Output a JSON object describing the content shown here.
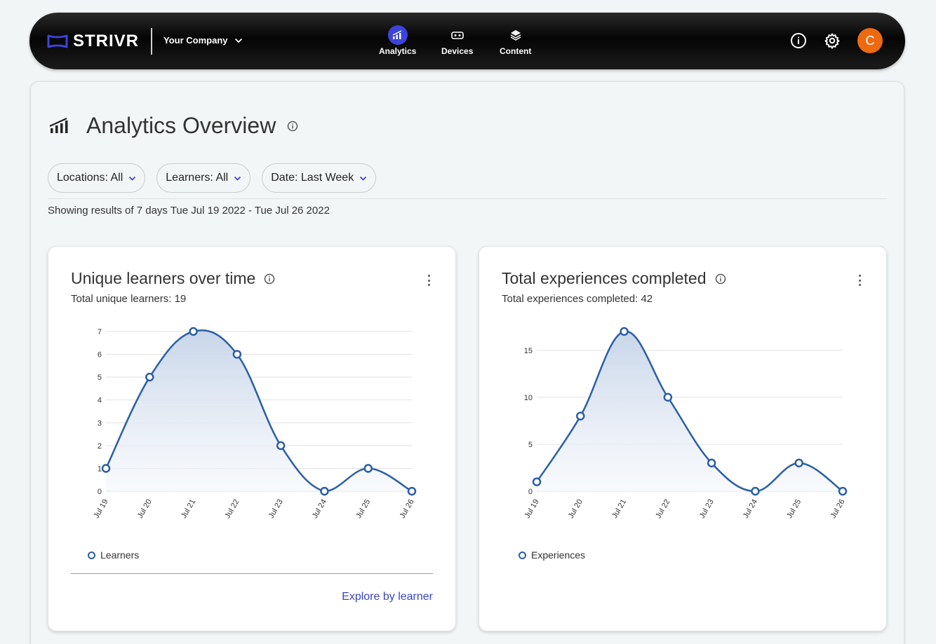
{
  "header": {
    "brand": "STRIVR",
    "company": "Your Company",
    "nav": [
      {
        "label": "Analytics",
        "icon": "analytics-icon",
        "active": true
      },
      {
        "label": "Devices",
        "icon": "vr-headset-icon",
        "active": false
      },
      {
        "label": "Content",
        "icon": "layers-icon",
        "active": false
      }
    ],
    "avatar_initial": "C",
    "colors": {
      "accent": "#3d44d8",
      "avatar": "#ee6a10"
    }
  },
  "page": {
    "title": "Analytics Overview",
    "filters": [
      "Locations: All",
      "Learners: All",
      "Date: Last Week"
    ],
    "results_text": "Showing results of 7 days Tue Jul 19 2022 - Tue Jul 26 2022"
  },
  "cards": [
    {
      "title": "Unique learners over time",
      "subtitle": "Total unique learners: 19",
      "legend": "Learners",
      "link": "Explore by learner"
    },
    {
      "title": "Total experiences completed",
      "subtitle": "Total experiences completed: 42",
      "legend": "Experiences"
    }
  ],
  "chart_data": [
    {
      "type": "area",
      "categories": [
        "Jul 19",
        "Jul 20",
        "Jul 21",
        "Jul 22",
        "Jul 23",
        "Jul 24",
        "Jul 25",
        "Jul 26"
      ],
      "series": [
        {
          "name": "Learners",
          "values": [
            1,
            5,
            7,
            6,
            2,
            0,
            1,
            0
          ]
        }
      ],
      "yticks": [
        0,
        1,
        2,
        3,
        4,
        5,
        6,
        7
      ],
      "ylim": [
        0,
        7
      ],
      "grid": true,
      "legend": "bottom-left",
      "color": "#2a5ea6"
    },
    {
      "type": "area",
      "categories": [
        "Jul 19",
        "Jul 20",
        "Jul 21",
        "Jul 22",
        "Jul 23",
        "Jul 24",
        "Jul 25",
        "Jul 26"
      ],
      "series": [
        {
          "name": "Experiences",
          "values": [
            1,
            8,
            17,
            10,
            3,
            0,
            3,
            0
          ]
        }
      ],
      "yticks": [
        0,
        5,
        10,
        15
      ],
      "ylim": [
        0,
        17
      ],
      "grid": true,
      "legend": "bottom-left",
      "color": "#2a5ea6"
    }
  ]
}
